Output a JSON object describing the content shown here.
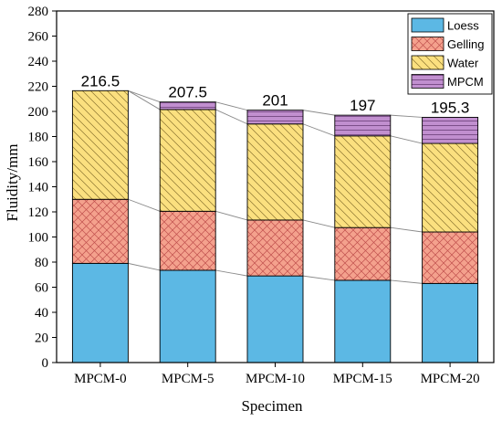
{
  "chart_data": {
    "type": "bar",
    "stacked": true,
    "xlabel": "Specimen",
    "ylabel": "Fluidity/mm",
    "ylim": [
      0,
      280
    ],
    "ytick_step": 20,
    "categories": [
      "MPCM-0",
      "MPCM-5",
      "MPCM-10",
      "MPCM-15",
      "MPCM-20"
    ],
    "series": [
      {
        "name": "Loess",
        "values": [
          79,
          73.5,
          69,
          65.5,
          63
        ],
        "color": "#5cb8e4",
        "pattern": "none"
      },
      {
        "name": "Gelling",
        "values": [
          51,
          47,
          44.5,
          42,
          41
        ],
        "color": "#f4a18d",
        "pattern": "crosshatch"
      },
      {
        "name": "Water",
        "values": [
          86.5,
          81,
          76.5,
          73,
          70.5
        ],
        "color": "#fbe07f",
        "pattern": "diagonal"
      },
      {
        "name": "MPCM",
        "values": [
          0,
          6,
          11,
          16.5,
          20.8
        ],
        "color": "#c18fcf",
        "pattern": "horizontal"
      }
    ],
    "totals": [
      "216.5",
      "207.5",
      "201",
      "197",
      "195.3"
    ],
    "legend_position": "top-right",
    "connector_lines": true,
    "grid": false
  }
}
